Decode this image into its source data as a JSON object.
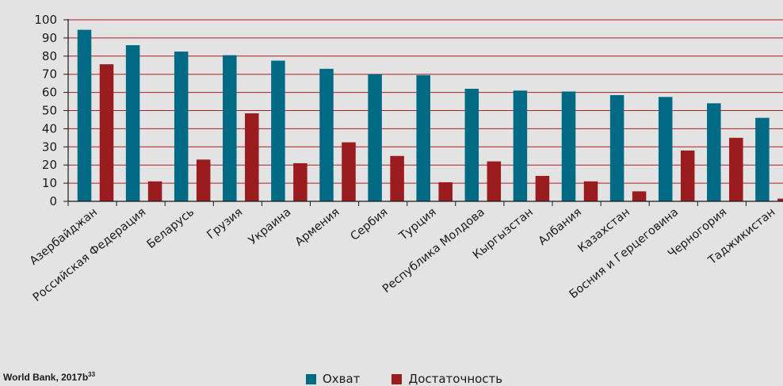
{
  "chart_data": {
    "type": "bar",
    "categories": [
      "Азербайджан",
      "Российская Федерация",
      "Беларусь",
      "Грузия",
      "Украина",
      "Армения",
      "Сербия",
      "Турция",
      "Республика Молдова",
      "Кыргызстан",
      "Албания",
      "Казахстан",
      "Босния и Герцеговина",
      "Черногория",
      "Таджикистан"
    ],
    "series": [
      {
        "name": "Охват",
        "color": "#006a85",
        "values": [
          94.5,
          86,
          82.5,
          80.5,
          77.5,
          73,
          70,
          69.5,
          62,
          61,
          60.5,
          58.5,
          57.5,
          54,
          46
        ]
      },
      {
        "name": "Достаточность",
        "color": "#9a1c1f",
        "values": [
          75.5,
          11,
          23,
          48.5,
          21,
          32.5,
          25,
          10.5,
          22,
          14,
          11,
          5.5,
          28,
          35,
          1.5
        ]
      }
    ],
    "y_ticks": [
      "0",
      "10",
      "20",
      "30",
      "40",
      "50",
      "60",
      "70",
      "80",
      "90",
      "100"
    ],
    "ylim": [
      0,
      100
    ],
    "grid": true,
    "grid_color": "#b01e23",
    "legend_position": "bottom-center"
  },
  "source_note": {
    "text": "World Bank, 2017b",
    "ref": "33"
  }
}
